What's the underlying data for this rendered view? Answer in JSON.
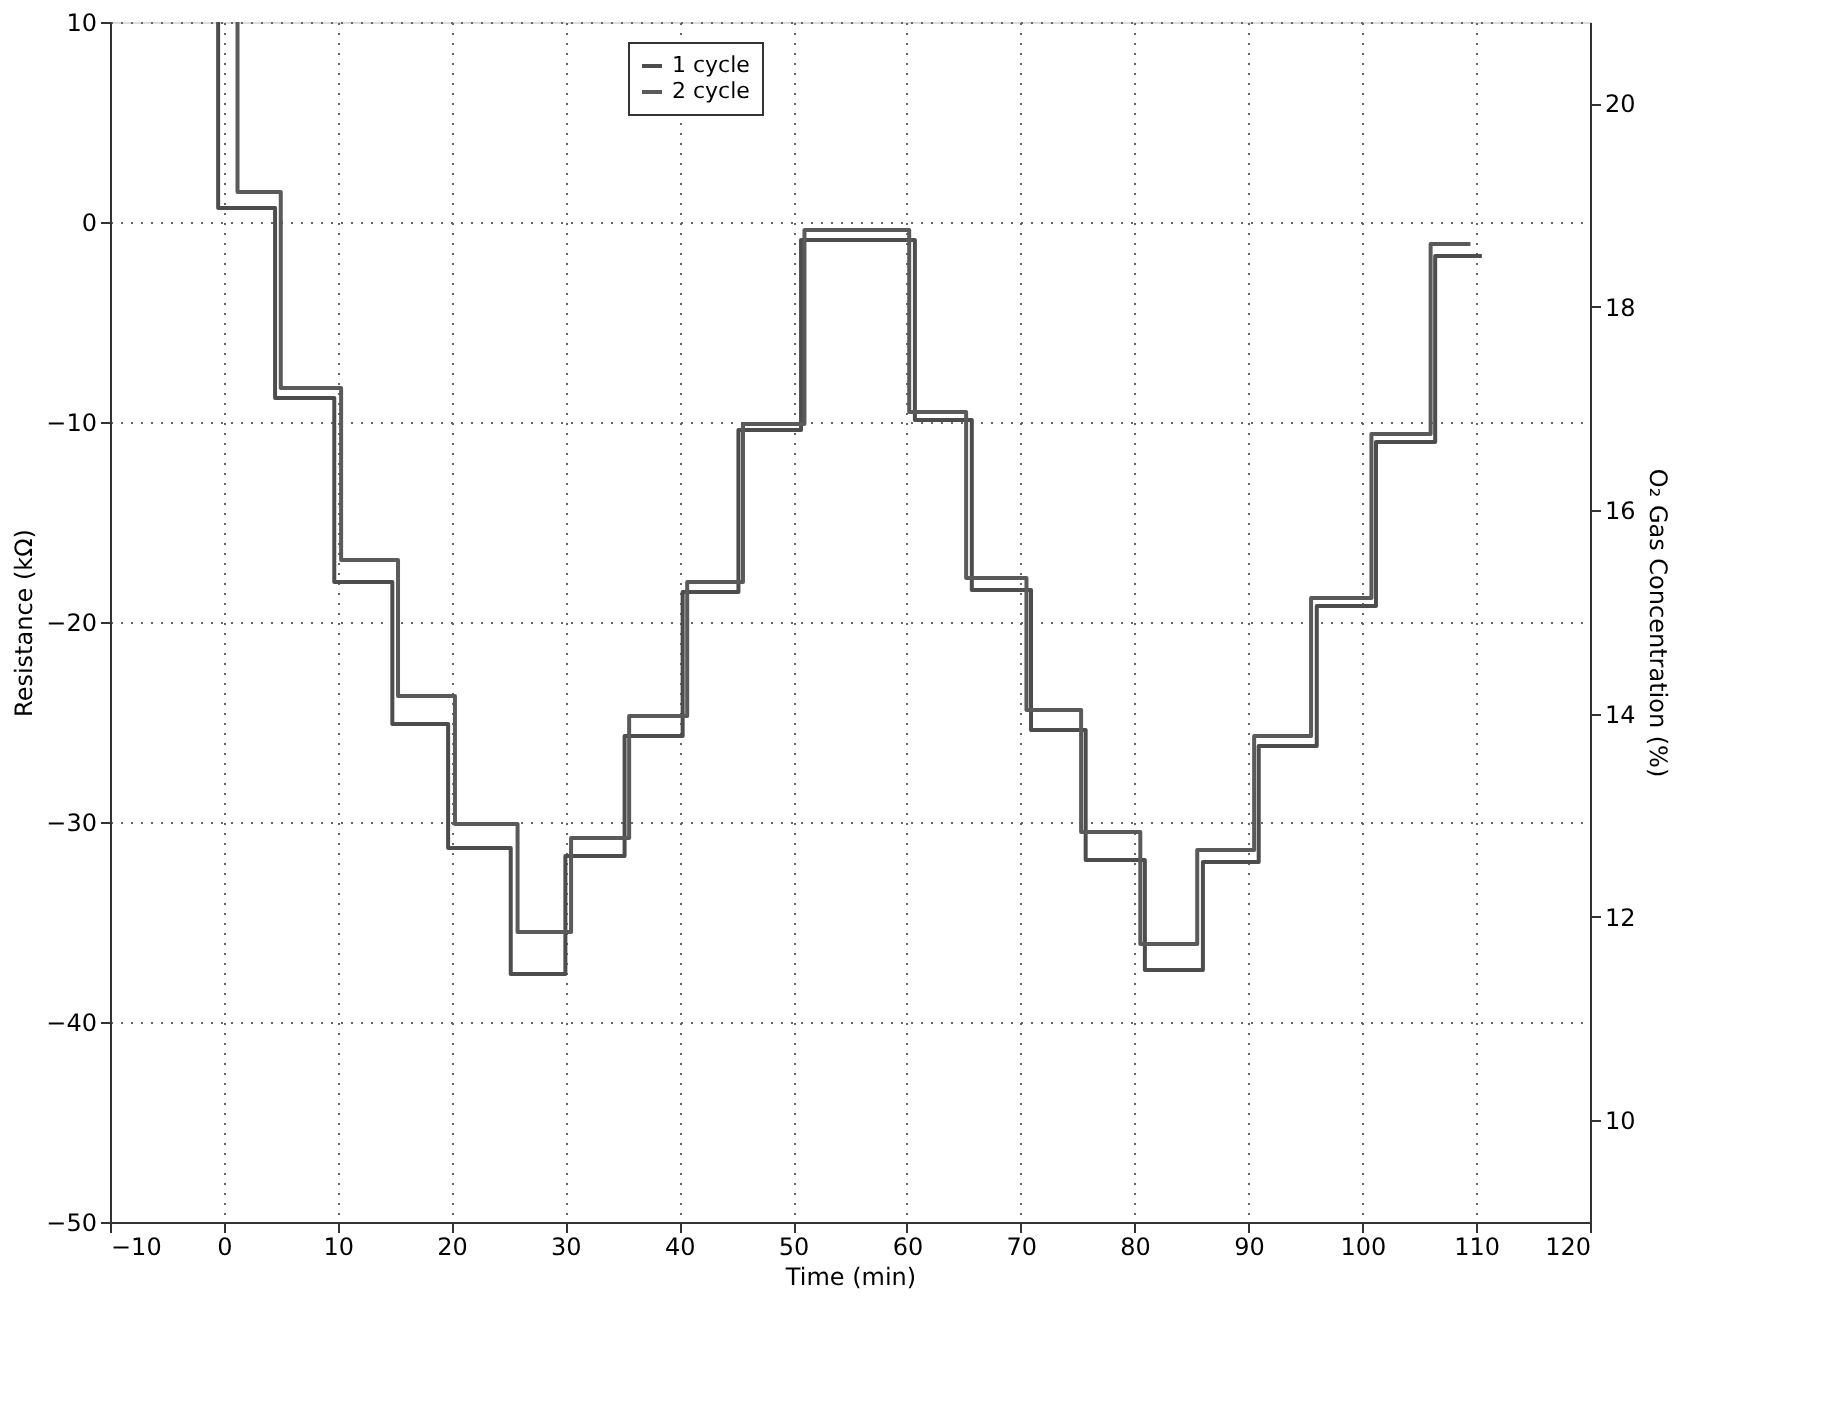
{
  "chart_data": {
    "type": "line",
    "xlabel": "Time (min)",
    "ylabel": "Resistance (kΩ)",
    "y2label": "O₂ Gas Concentration (%)",
    "xlim": [
      -10,
      120
    ],
    "xticks": [
      -10,
      0,
      10,
      20,
      30,
      40,
      50,
      60,
      70,
      80,
      90,
      100,
      110,
      120
    ],
    "ylim": [
      -50,
      10
    ],
    "yticks": [
      -50,
      -40,
      -30,
      -20,
      -10,
      0,
      10
    ],
    "y2lim": [
      9,
      20.8
    ],
    "y2ticks": [
      10,
      12,
      14,
      16,
      18,
      20
    ],
    "grid": true,
    "legend": "top",
    "line_style": "solid",
    "series": [
      {
        "name": "1 cycle",
        "color": "#4d4d4d",
        "x": [
          -0.5,
          -0.5,
          4.5,
          4.5,
          9.7,
          9.7,
          14.8,
          14.8,
          19.7,
          19.7,
          25.2,
          25.2,
          30,
          30,
          35.2,
          35.2,
          40.3,
          40.3,
          45.2,
          45.2,
          50.7,
          50.7,
          60.7,
          60.7,
          65.7,
          65.7,
          70.9,
          70.9,
          75.7,
          75.7,
          80.9,
          80.9,
          86,
          86,
          90.9,
          90.9,
          96,
          96,
          101.2,
          101.2,
          106.4,
          106.4,
          110.5
        ],
        "values": [
          10,
          0.7,
          0.7,
          -8.8,
          -8.8,
          -18,
          -18,
          -25.1,
          -25.1,
          -31.3,
          -31.3,
          -37.6,
          -37.6,
          -31.7,
          -31.7,
          -25.7,
          -25.7,
          -18.5,
          -18.5,
          -10.4,
          -10.4,
          -0.9,
          -0.9,
          -9.9,
          -9.9,
          -18.4,
          -18.4,
          -25.4,
          -25.4,
          -31.9,
          -31.9,
          -37.4,
          -37.4,
          -32,
          -32,
          -26.2,
          -26.2,
          -19.2,
          -19.2,
          -11,
          -11,
          -1.7,
          -1.7
        ]
      },
      {
        "name": "2 cycle",
        "color": "#5a5a5a",
        "x": [
          1.2,
          1.2,
          5,
          5,
          10.3,
          10.3,
          15.3,
          15.3,
          20.3,
          20.3,
          25.8,
          25.8,
          30.5,
          30.5,
          35.6,
          35.6,
          40.7,
          40.7,
          45.6,
          45.6,
          51,
          51,
          60.2,
          60.2,
          65.2,
          65.2,
          70.5,
          70.5,
          75.3,
          75.3,
          80.5,
          80.5,
          85.5,
          85.5,
          90.5,
          90.5,
          95.5,
          95.5,
          100.8,
          100.8,
          106,
          106,
          109.5
        ],
        "values": [
          10,
          1.5,
          1.5,
          -8.3,
          -8.3,
          -16.9,
          -16.9,
          -23.7,
          -23.7,
          -30.1,
          -30.1,
          -35.5,
          -35.5,
          -30.8,
          -30.8,
          -24.7,
          -24.7,
          -18,
          -18,
          -10.1,
          -10.1,
          -0.4,
          -0.4,
          -9.5,
          -9.5,
          -17.8,
          -17.8,
          -24.4,
          -24.4,
          -30.5,
          -30.5,
          -36.1,
          -36.1,
          -31.4,
          -31.4,
          -25.7,
          -25.7,
          -18.8,
          -18.8,
          -10.6,
          -10.6,
          -1.1,
          -1.1
        ]
      }
    ]
  }
}
